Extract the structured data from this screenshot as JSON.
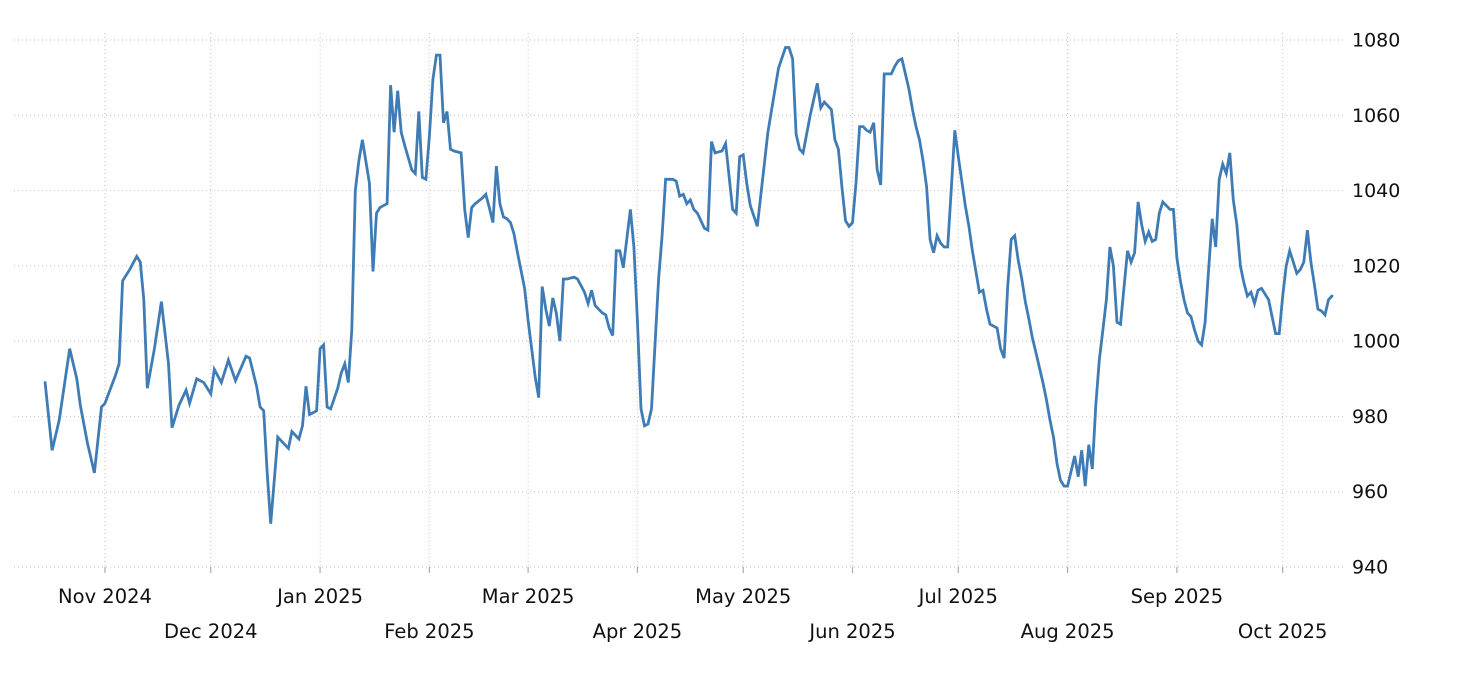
{
  "chart_data": {
    "type": "line",
    "title": "",
    "xlabel": "",
    "ylabel": "",
    "legend": "none",
    "grid": "dotted",
    "y_axis_side": "right",
    "background_color": "#ffffff",
    "line_color": "#3f7cb6",
    "grid_color": "#c9c9c9",
    "tick_color": "#aaaaaa",
    "text_color": "#111111",
    "ylim": [
      940,
      1080
    ],
    "y_ticks": [
      940,
      960,
      980,
      1000,
      1020,
      1040,
      1060,
      1080
    ],
    "x_ticks": [
      {
        "date": "2024-11-01",
        "label": "Nov 2024",
        "row": 1
      },
      {
        "date": "2024-12-01",
        "label": "Dec 2024",
        "row": 2
      },
      {
        "date": "2025-01-01",
        "label": "Jan 2025",
        "row": 1
      },
      {
        "date": "2025-02-01",
        "label": "Feb 2025",
        "row": 2
      },
      {
        "date": "2025-03-01",
        "label": "Mar 2025",
        "row": 1
      },
      {
        "date": "2025-04-01",
        "label": "Apr 2025",
        "row": 2
      },
      {
        "date": "2025-05-01",
        "label": "May 2025",
        "row": 1
      },
      {
        "date": "2025-06-01",
        "label": "Jun 2025",
        "row": 2
      },
      {
        "date": "2025-07-01",
        "label": "Jul 2025",
        "row": 1
      },
      {
        "date": "2025-08-01",
        "label": "Aug 2025",
        "row": 2
      },
      {
        "date": "2025-09-01",
        "label": "Sep 2025",
        "row": 1
      },
      {
        "date": "2025-10-01",
        "label": "Oct 2025",
        "row": 2
      }
    ],
    "points": [
      [
        "2024-10-15",
        989
      ],
      [
        "2024-10-17",
        971
      ],
      [
        "2024-10-19",
        979
      ],
      [
        "2024-10-22",
        998
      ],
      [
        "2024-10-24",
        990
      ],
      [
        "2024-10-25",
        983
      ],
      [
        "2024-10-27",
        973
      ],
      [
        "2024-10-29",
        965
      ],
      [
        "2024-10-31",
        982.5
      ],
      [
        "2024-11-01",
        983.5
      ],
      [
        "2024-11-04",
        991
      ],
      [
        "2024-11-05",
        994
      ],
      [
        "2024-11-06",
        1016
      ],
      [
        "2024-11-08",
        1019
      ],
      [
        "2024-11-10",
        1022.5
      ],
      [
        "2024-11-11",
        1021
      ],
      [
        "2024-11-12",
        1011
      ],
      [
        "2024-11-13",
        987.5
      ],
      [
        "2024-11-15",
        998
      ],
      [
        "2024-11-17",
        1010.5
      ],
      [
        "2024-11-19",
        994
      ],
      [
        "2024-11-20",
        977
      ],
      [
        "2024-11-22",
        983
      ],
      [
        "2024-11-24",
        987
      ],
      [
        "2024-11-25",
        983.5
      ],
      [
        "2024-11-27",
        990
      ],
      [
        "2024-11-29",
        989
      ],
      [
        "2024-12-01",
        986
      ],
      [
        "2024-12-02",
        992.5
      ],
      [
        "2024-12-04",
        989
      ],
      [
        "2024-12-06",
        995
      ],
      [
        "2024-12-08",
        989.5
      ],
      [
        "2024-12-11",
        996
      ],
      [
        "2024-12-12",
        995.5
      ],
      [
        "2024-12-14",
        988
      ],
      [
        "2024-12-15",
        982.5
      ],
      [
        "2024-12-16",
        981.5
      ],
      [
        "2024-12-17",
        965
      ],
      [
        "2024-12-18",
        951.5
      ],
      [
        "2024-12-20",
        974.5
      ],
      [
        "2024-12-21",
        973.5
      ],
      [
        "2024-12-23",
        971.5
      ],
      [
        "2024-12-24",
        976
      ],
      [
        "2024-12-26",
        974
      ],
      [
        "2024-12-27",
        977.5
      ],
      [
        "2024-12-28",
        988
      ],
      [
        "2024-12-29",
        980.5
      ],
      [
        "2024-12-30",
        981
      ],
      [
        "2024-12-31",
        981.5
      ],
      [
        "2025-01-01",
        998
      ],
      [
        "2025-01-02",
        999
      ],
      [
        "2025-01-03",
        982.5
      ],
      [
        "2025-01-04",
        982
      ],
      [
        "2025-01-06",
        987.5
      ],
      [
        "2025-01-07",
        991.5
      ],
      [
        "2025-01-08",
        994
      ],
      [
        "2025-01-09",
        989
      ],
      [
        "2025-01-10",
        1003
      ],
      [
        "2025-01-11",
        1040
      ],
      [
        "2025-01-12",
        1048
      ],
      [
        "2025-01-13",
        1053.5
      ],
      [
        "2025-01-15",
        1042
      ],
      [
        "2025-01-16",
        1018.5
      ],
      [
        "2025-01-17",
        1034
      ],
      [
        "2025-01-18",
        1035.5
      ],
      [
        "2025-01-20",
        1036.5
      ],
      [
        "2025-01-21",
        1068
      ],
      [
        "2025-01-22",
        1055.5
      ],
      [
        "2025-01-23",
        1066.5
      ],
      [
        "2025-01-24",
        1055.5
      ],
      [
        "2025-01-25",
        1052
      ],
      [
        "2025-01-27",
        1045.5
      ],
      [
        "2025-01-28",
        1044.5
      ],
      [
        "2025-01-29",
        1061
      ],
      [
        "2025-01-30",
        1043.5
      ],
      [
        "2025-01-31",
        1043
      ],
      [
        "2025-02-01",
        1054.5
      ],
      [
        "2025-02-02",
        1069.5
      ],
      [
        "2025-02-03",
        1076
      ],
      [
        "2025-02-04",
        1076
      ],
      [
        "2025-02-05",
        1058
      ],
      [
        "2025-02-06",
        1061
      ],
      [
        "2025-02-07",
        1051
      ],
      [
        "2025-02-08",
        1050.5
      ],
      [
        "2025-02-10",
        1050
      ],
      [
        "2025-02-11",
        1035
      ],
      [
        "2025-02-12",
        1027.5
      ],
      [
        "2025-02-13",
        1035.5
      ],
      [
        "2025-02-14",
        1036.5
      ],
      [
        "2025-02-16",
        1038
      ],
      [
        "2025-02-17",
        1039
      ],
      [
        "2025-02-18",
        1035.5
      ],
      [
        "2025-02-19",
        1031.5
      ],
      [
        "2025-02-20",
        1046.5
      ],
      [
        "2025-02-21",
        1036.5
      ],
      [
        "2025-02-22",
        1033
      ],
      [
        "2025-02-23",
        1032.5
      ],
      [
        "2025-02-24",
        1031.5
      ],
      [
        "2025-02-25",
        1028.5
      ],
      [
        "2025-02-26",
        1023.5
      ],
      [
        "2025-02-28",
        1014
      ],
      [
        "2025-03-01",
        1005.5
      ],
      [
        "2025-03-03",
        990.5
      ],
      [
        "2025-03-04",
        985
      ],
      [
        "2025-03-05",
        1014.5
      ],
      [
        "2025-03-06",
        1008.5
      ],
      [
        "2025-03-07",
        1004
      ],
      [
        "2025-03-08",
        1011.5
      ],
      [
        "2025-03-09",
        1007.5
      ],
      [
        "2025-03-10",
        1000
      ],
      [
        "2025-03-11",
        1016.5
      ],
      [
        "2025-03-12",
        1016.5
      ],
      [
        "2025-03-14",
        1017
      ],
      [
        "2025-03-15",
        1016.5
      ],
      [
        "2025-03-17",
        1013
      ],
      [
        "2025-03-18",
        1010
      ],
      [
        "2025-03-19",
        1013.5
      ],
      [
        "2025-03-20",
        1009.5
      ],
      [
        "2025-03-21",
        1008.5
      ],
      [
        "2025-03-22",
        1007.5
      ],
      [
        "2025-03-23",
        1007
      ],
      [
        "2025-03-24",
        1003.5
      ],
      [
        "2025-03-25",
        1001.5
      ],
      [
        "2025-03-26",
        1024
      ],
      [
        "2025-03-27",
        1024
      ],
      [
        "2025-03-28",
        1019.5
      ],
      [
        "2025-03-30",
        1035
      ],
      [
        "2025-03-31",
        1025
      ],
      [
        "2025-04-01",
        1005.5
      ],
      [
        "2025-04-02",
        982
      ],
      [
        "2025-04-03",
        977.5
      ],
      [
        "2025-04-04",
        978
      ],
      [
        "2025-04-05",
        982
      ],
      [
        "2025-04-07",
        1016.5
      ],
      [
        "2025-04-08",
        1028
      ],
      [
        "2025-04-09",
        1043
      ],
      [
        "2025-04-11",
        1043
      ],
      [
        "2025-04-12",
        1042.5
      ],
      [
        "2025-04-13",
        1038.5
      ],
      [
        "2025-04-14",
        1039
      ],
      [
        "2025-04-15",
        1036.5
      ],
      [
        "2025-04-16",
        1037.5
      ],
      [
        "2025-04-17",
        1035
      ],
      [
        "2025-04-18",
        1034
      ],
      [
        "2025-04-20",
        1030
      ],
      [
        "2025-04-21",
        1029.5
      ],
      [
        "2025-04-22",
        1053
      ],
      [
        "2025-04-23",
        1050
      ],
      [
        "2025-04-25",
        1050.5
      ],
      [
        "2025-04-26",
        1052.5
      ],
      [
        "2025-04-28",
        1035
      ],
      [
        "2025-04-29",
        1034
      ],
      [
        "2025-04-30",
        1049
      ],
      [
        "2025-05-01",
        1049.5
      ],
      [
        "2025-05-02",
        1042
      ],
      [
        "2025-05-03",
        1036
      ],
      [
        "2025-05-05",
        1030.5
      ],
      [
        "2025-05-08",
        1055.5
      ],
      [
        "2025-05-11",
        1072.5
      ],
      [
        "2025-05-13",
        1078
      ],
      [
        "2025-05-14",
        1078
      ],
      [
        "2025-05-15",
        1075
      ],
      [
        "2025-05-16",
        1055
      ],
      [
        "2025-05-17",
        1051
      ],
      [
        "2025-05-18",
        1050
      ],
      [
        "2025-05-20",
        1060
      ],
      [
        "2025-05-22",
        1068.5
      ],
      [
        "2025-05-23",
        1062
      ],
      [
        "2025-05-24",
        1063.5
      ],
      [
        "2025-05-26",
        1061.5
      ],
      [
        "2025-05-27",
        1053.5
      ],
      [
        "2025-05-28",
        1051
      ],
      [
        "2025-05-29",
        1041
      ],
      [
        "2025-05-30",
        1032
      ],
      [
        "2025-05-31",
        1030.5
      ],
      [
        "2025-06-01",
        1031.5
      ],
      [
        "2025-06-02",
        1042
      ],
      [
        "2025-06-03",
        1057
      ],
      [
        "2025-06-04",
        1057
      ],
      [
        "2025-06-05",
        1056
      ],
      [
        "2025-06-06",
        1055.5
      ],
      [
        "2025-06-07",
        1058
      ],
      [
        "2025-06-08",
        1045.5
      ],
      [
        "2025-06-09",
        1041.5
      ],
      [
        "2025-06-10",
        1071
      ],
      [
        "2025-06-12",
        1071
      ],
      [
        "2025-06-13",
        1073
      ],
      [
        "2025-06-14",
        1074.5
      ],
      [
        "2025-06-15",
        1075
      ],
      [
        "2025-06-17",
        1067
      ],
      [
        "2025-06-18",
        1061.5
      ],
      [
        "2025-06-19",
        1057
      ],
      [
        "2025-06-20",
        1053.5
      ],
      [
        "2025-06-21",
        1048
      ],
      [
        "2025-06-22",
        1041
      ],
      [
        "2025-06-23",
        1027
      ],
      [
        "2025-06-24",
        1023.5
      ],
      [
        "2025-06-25",
        1028
      ],
      [
        "2025-06-26",
        1026
      ],
      [
        "2025-06-27",
        1025
      ],
      [
        "2025-06-28",
        1025
      ],
      [
        "2025-06-29",
        1040
      ],
      [
        "2025-06-30",
        1056
      ],
      [
        "2025-07-01",
        1049
      ],
      [
        "2025-07-02",
        1042.5
      ],
      [
        "2025-07-03",
        1036
      ],
      [
        "2025-07-04",
        1030.5
      ],
      [
        "2025-07-05",
        1024
      ],
      [
        "2025-07-06",
        1018.5
      ],
      [
        "2025-07-07",
        1013
      ],
      [
        "2025-07-08",
        1013.5
      ],
      [
        "2025-07-09",
        1008.5
      ],
      [
        "2025-07-10",
        1004.5
      ],
      [
        "2025-07-11",
        1004
      ],
      [
        "2025-07-12",
        1003.5
      ],
      [
        "2025-07-13",
        998
      ],
      [
        "2025-07-14",
        995.5
      ],
      [
        "2025-07-15",
        1014.5
      ],
      [
        "2025-07-16",
        1027
      ],
      [
        "2025-07-17",
        1028
      ],
      [
        "2025-07-18",
        1021.5
      ],
      [
        "2025-07-19",
        1016.5
      ],
      [
        "2025-07-20",
        1010.5
      ],
      [
        "2025-07-21",
        1006
      ],
      [
        "2025-07-22",
        1001
      ],
      [
        "2025-07-23",
        997
      ],
      [
        "2025-07-24",
        993
      ],
      [
        "2025-07-25",
        989
      ],
      [
        "2025-07-26",
        984.5
      ],
      [
        "2025-07-27",
        979
      ],
      [
        "2025-07-28",
        974.5
      ],
      [
        "2025-07-29",
        967.5
      ],
      [
        "2025-07-30",
        963
      ],
      [
        "2025-07-31",
        961.5
      ],
      [
        "2025-08-01",
        961.5
      ],
      [
        "2025-08-03",
        969.5
      ],
      [
        "2025-08-04",
        964
      ],
      [
        "2025-08-05",
        971
      ],
      [
        "2025-08-06",
        961.5
      ],
      [
        "2025-08-07",
        972.5
      ],
      [
        "2025-08-08",
        966
      ],
      [
        "2025-08-09",
        983
      ],
      [
        "2025-08-10",
        995
      ],
      [
        "2025-08-11",
        1003
      ],
      [
        "2025-08-12",
        1011
      ],
      [
        "2025-08-13",
        1025
      ],
      [
        "2025-08-14",
        1020
      ],
      [
        "2025-08-15",
        1005
      ],
      [
        "2025-08-16",
        1004.5
      ],
      [
        "2025-08-18",
        1024
      ],
      [
        "2025-08-19",
        1021
      ],
      [
        "2025-08-20",
        1023.5
      ],
      [
        "2025-08-21",
        1037
      ],
      [
        "2025-08-22",
        1031
      ],
      [
        "2025-08-23",
        1026.5
      ],
      [
        "2025-08-24",
        1029
      ],
      [
        "2025-08-25",
        1026.5
      ],
      [
        "2025-08-26",
        1027
      ],
      [
        "2025-08-27",
        1034
      ],
      [
        "2025-08-28",
        1037
      ],
      [
        "2025-08-29",
        1036
      ],
      [
        "2025-08-30",
        1035
      ],
      [
        "2025-08-31",
        1035
      ],
      [
        "2025-09-01",
        1022
      ],
      [
        "2025-09-02",
        1016
      ],
      [
        "2025-09-03",
        1011
      ],
      [
        "2025-09-04",
        1007.5
      ],
      [
        "2025-09-05",
        1006.5
      ],
      [
        "2025-09-06",
        1003
      ],
      [
        "2025-09-07",
        1000
      ],
      [
        "2025-09-08",
        999
      ],
      [
        "2025-09-09",
        1005
      ],
      [
        "2025-09-10",
        1019
      ],
      [
        "2025-09-11",
        1032.5
      ],
      [
        "2025-09-12",
        1025
      ],
      [
        "2025-09-13",
        1043
      ],
      [
        "2025-09-14",
        1047
      ],
      [
        "2025-09-15",
        1044.5
      ],
      [
        "2025-09-16",
        1050
      ],
      [
        "2025-09-17",
        1037.5
      ],
      [
        "2025-09-18",
        1031
      ],
      [
        "2025-09-19",
        1020
      ],
      [
        "2025-09-20",
        1015.5
      ],
      [
        "2025-09-21",
        1012
      ],
      [
        "2025-09-22",
        1013
      ],
      [
        "2025-09-23",
        1010
      ],
      [
        "2025-09-24",
        1013.5
      ],
      [
        "2025-09-25",
        1014
      ],
      [
        "2025-09-26",
        1012.5
      ],
      [
        "2025-09-27",
        1011
      ],
      [
        "2025-09-28",
        1006.5
      ],
      [
        "2025-09-29",
        1002
      ],
      [
        "2025-09-30",
        1002
      ],
      [
        "2025-10-01",
        1012
      ],
      [
        "2025-10-02",
        1020
      ],
      [
        "2025-10-03",
        1024
      ],
      [
        "2025-10-04",
        1021
      ],
      [
        "2025-10-05",
        1018
      ],
      [
        "2025-10-06",
        1019
      ],
      [
        "2025-10-07",
        1021
      ],
      [
        "2025-10-08",
        1029.5
      ],
      [
        "2025-10-09",
        1021
      ],
      [
        "2025-10-10",
        1015
      ],
      [
        "2025-10-11",
        1008.5
      ],
      [
        "2025-10-12",
        1008
      ],
      [
        "2025-10-13",
        1007
      ],
      [
        "2025-10-14",
        1011
      ],
      [
        "2025-10-15",
        1012
      ]
    ]
  }
}
